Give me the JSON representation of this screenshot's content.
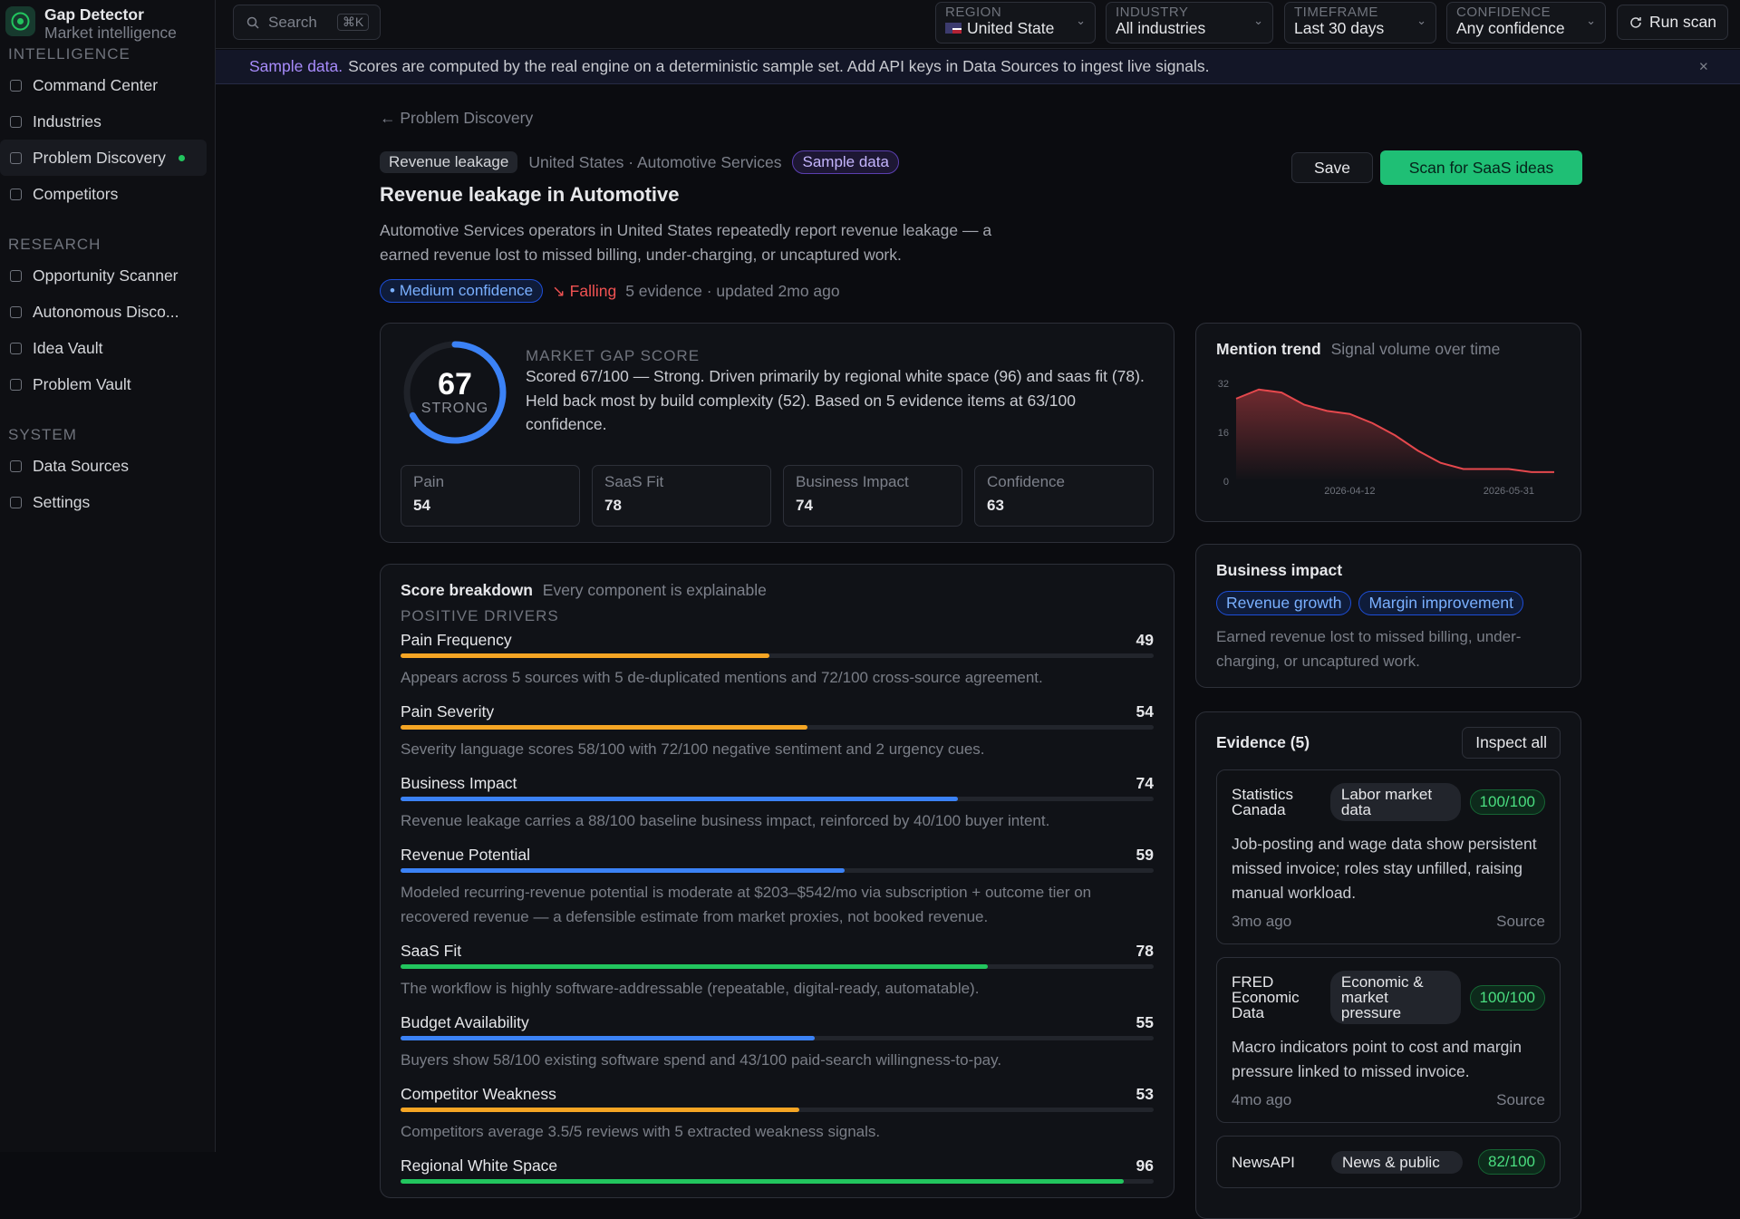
{
  "app": {
    "name": "Gap Detector",
    "subtitle": "Market intelligence"
  },
  "search": {
    "placeholder": "Search",
    "shortcut": "⌘K"
  },
  "filters": [
    {
      "label": "REGION",
      "value": "United State"
    },
    {
      "label": "INDUSTRY",
      "value": "All industries"
    },
    {
      "label": "TIMEFRAME",
      "value": "Last 30 days"
    },
    {
      "label": "CONFIDENCE",
      "value": "Any confidence"
    }
  ],
  "run_scan": "Run scan",
  "nav": [
    {
      "label": "INTELLIGENCE",
      "items": [
        {
          "label": "Command Center"
        },
        {
          "label": "Industries"
        },
        {
          "label": "Problem Discovery",
          "active": true
        },
        {
          "label": "Competitors"
        }
      ]
    },
    {
      "label": "RESEARCH",
      "items": [
        {
          "label": "Opportunity Scanner"
        },
        {
          "label": "Autonomous Disco..."
        },
        {
          "label": "Idea Vault"
        },
        {
          "label": "Problem Vault"
        }
      ]
    },
    {
      "label": "SYSTEM",
      "items": [
        {
          "label": "Data Sources"
        },
        {
          "label": "Settings"
        }
      ]
    }
  ],
  "banner": {
    "strong": "Sample data.",
    "text": "Scores are computed by the real engine on a deterministic sample set. Add API keys in Data Sources to ingest live signals."
  },
  "breadcrumb": "Problem Discovery",
  "tags": {
    "category": "Revenue leakage",
    "context": "United States · Automotive Services",
    "sample": "Sample data"
  },
  "actions": {
    "save": "Save",
    "scan": "Scan for SaaS ideas"
  },
  "title": "Revenue leakage in Automotive",
  "description": "Automotive Services operators in United States repeatedly report revenue leakage — a earned revenue lost to missed billing, under-charging, or uncaptured work.",
  "status": {
    "confidence": "Medium confidence",
    "trend": "Falling",
    "meta": "5 evidence · updated 2mo ago"
  },
  "score": {
    "value": 67,
    "max": 100,
    "label": "STRONG",
    "heading": "MARKET GAP SCORE",
    "text": "Scored 67/100 — Strong. Driven primarily by regional white space (96) and saas fit (78). Held back most by build complexity (52). Based on 5 evidence items at 63/100 confidence.",
    "metrics": [
      {
        "label": "Pain",
        "value": 54
      },
      {
        "label": "SaaS Fit",
        "value": 78
      },
      {
        "label": "Business Impact",
        "value": 74
      },
      {
        "label": "Confidence",
        "value": 63
      }
    ]
  },
  "trend": {
    "title": "Mention trend",
    "subtitle": "Signal volume over time",
    "color": "#e5484d",
    "ylim": [
      0,
      32
    ],
    "yticks": [
      0,
      16,
      32
    ],
    "xticks": [
      {
        "value": 5,
        "label": "2026-04-12"
      },
      {
        "value": 12,
        "label": "2026-05-31"
      }
    ],
    "values": [
      27,
      30,
      29,
      25,
      23,
      22,
      19,
      15,
      10,
      6,
      4,
      4,
      4,
      3,
      3
    ]
  },
  "breakdown": {
    "title": "Score breakdown",
    "subtitle": "Every component is explainable",
    "section": "POSITIVE DRIVERS",
    "max": 100,
    "items": [
      {
        "name": "Pain Frequency",
        "value": 49,
        "color": "#f5a524",
        "note": "Appears across 5 sources with 5 de-duplicated mentions and 72/100 cross-source agreement."
      },
      {
        "name": "Pain Severity",
        "value": 54,
        "color": "#f5a524",
        "note": "Severity language scores 58/100 with 72/100 negative sentiment and 2 urgency cues."
      },
      {
        "name": "Business Impact",
        "value": 74,
        "color": "#3b82f6",
        "note": "Revenue leakage carries a 88/100 baseline business impact, reinforced by 40/100 buyer intent."
      },
      {
        "name": "Revenue Potential",
        "value": 59,
        "color": "#3b82f6",
        "note": "Modeled recurring-revenue potential is moderate at $203–$542/mo via subscription + outcome tier on recovered revenue — a defensible estimate from market proxies, not booked revenue."
      },
      {
        "name": "SaaS Fit",
        "value": 78,
        "color": "#22c55e",
        "note": "The workflow is highly software-addressable (repeatable, digital-ready, automatable)."
      },
      {
        "name": "Budget Availability",
        "value": 55,
        "color": "#3b82f6",
        "note": "Buyers show 58/100 existing software spend and 43/100 paid-search willingness-to-pay."
      },
      {
        "name": "Competitor Weakness",
        "value": 53,
        "color": "#f5a524",
        "note": "Competitors average 3.5/5 reviews with 5 extracted weakness signals."
      },
      {
        "name": "Regional White Space",
        "value": 96,
        "color": "#22c55e",
        "note": ""
      }
    ]
  },
  "impact": {
    "title": "Business impact",
    "tags": [
      "Revenue growth",
      "Margin improvement"
    ],
    "text": "Earned revenue lost to missed billing, under-charging, or uncaptured work."
  },
  "evidence": {
    "title": "Evidence (5)",
    "action": "Inspect all",
    "items": [
      {
        "source": "Statistics Canada",
        "category": "Labor market data",
        "score": "100/100",
        "text": "Job-posting and wage data show persistent missed invoice; roles stay unfilled, raising manual workload.",
        "age": "3mo ago",
        "link": "Source"
      },
      {
        "source": "FRED Economic Data",
        "category": "Economic & market pressure",
        "score": "100/100",
        "text": "Macro indicators point to cost and margin pressure linked to missed invoice.",
        "age": "4mo ago",
        "link": "Source"
      },
      {
        "source": "NewsAPI",
        "category": "News & public",
        "score": "82/100",
        "text": "",
        "age": "",
        "link": ""
      }
    ]
  }
}
